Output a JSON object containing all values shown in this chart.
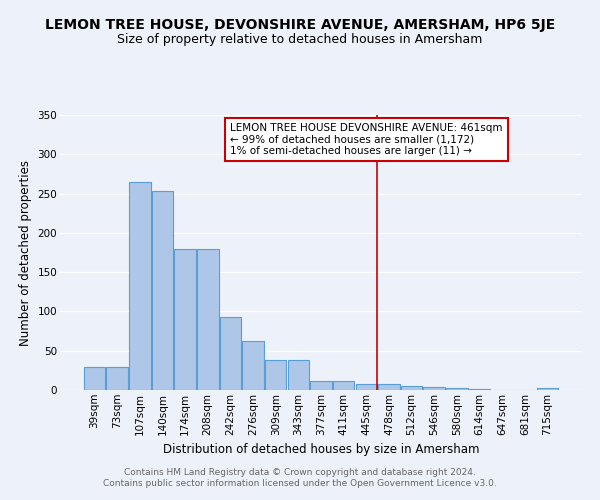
{
  "title": "LEMON TREE HOUSE, DEVONSHIRE AVENUE, AMERSHAM, HP6 5JE",
  "subtitle": "Size of property relative to detached houses in Amersham",
  "xlabel": "Distribution of detached houses by size in Amersham",
  "ylabel": "Number of detached properties",
  "footer_line1": "Contains HM Land Registry data © Crown copyright and database right 2024.",
  "footer_line2": "Contains public sector information licensed under the Open Government Licence v3.0.",
  "categories": [
    "39sqm",
    "73sqm",
    "107sqm",
    "140sqm",
    "174sqm",
    "208sqm",
    "242sqm",
    "276sqm",
    "309sqm",
    "343sqm",
    "377sqm",
    "411sqm",
    "445sqm",
    "478sqm",
    "512sqm",
    "546sqm",
    "580sqm",
    "614sqm",
    "647sqm",
    "681sqm",
    "715sqm"
  ],
  "values": [
    29,
    29,
    265,
    253,
    180,
    180,
    93,
    63,
    38,
    38,
    12,
    12,
    8,
    8,
    5,
    4,
    3,
    1,
    0,
    0,
    2
  ],
  "bar_color": "#aec6e8",
  "bar_edge_color": "#5a9fd4",
  "annotation_line_color": "#cc0000",
  "annotation_box_text_line1": "LEMON TREE HOUSE DEVONSHIRE AVENUE: 461sqm",
  "annotation_box_text_line2": "← 99% of detached houses are smaller (1,172)",
  "annotation_box_text_line3": "1% of semi-detached houses are larger (11) →",
  "annotation_box_color": "#cc0000",
  "ylim": [
    0,
    350
  ],
  "yticks": [
    0,
    50,
    100,
    150,
    200,
    250,
    300,
    350
  ],
  "background_color": "#edf1f9",
  "grid_color": "#ffffff",
  "title_fontsize": 10,
  "subtitle_fontsize": 9,
  "axis_label_fontsize": 8.5,
  "tick_fontsize": 7.5,
  "footer_fontsize": 6.5,
  "annotation_fontsize": 7.5
}
